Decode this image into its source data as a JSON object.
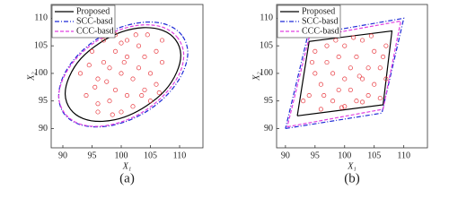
{
  "chart_data": [
    {
      "type": "scatter",
      "curve": "smooth",
      "caption": "(a)",
      "xlabel": "X₁",
      "ylabel": "X₂",
      "xlim": [
        88,
        114
      ],
      "ylim": [
        86.5,
        112.5
      ],
      "xticks": [
        90,
        95,
        100,
        105,
        110
      ],
      "yticks": [
        90,
        95,
        100,
        105,
        110
      ],
      "legend": "upper left",
      "series": [
        {
          "name": "Proposed",
          "color": "#000000",
          "mode": "line",
          "dash": "solid",
          "x": [
            109.3,
            107.1,
            103.8,
            100.0,
            96.3,
            93.1,
            91.1,
            90.4,
            91.3,
            93.5,
            96.8,
            100.6,
            104.3,
            107.5,
            109.5,
            110.2,
            109.3
          ],
          "values": [
            106.1,
            107.8,
            108.3,
            107.5,
            105.5,
            102.7,
            99.4,
            96.2,
            93.5,
            91.8,
            91.3,
            92.1,
            94.1,
            96.9,
            100.2,
            103.4,
            106.1
          ]
        },
        {
          "name": "SCC-basd",
          "color": "#1f2bd6",
          "mode": "line",
          "dash": "dashdot",
          "x": [
            110.4,
            107.9,
            104.3,
            100.0,
            95.8,
            92.3,
            90.0,
            89.3,
            90.2,
            92.7,
            96.4,
            100.6,
            104.8,
            108.3,
            110.6,
            111.4,
            110.4
          ],
          "values": [
            106.9,
            108.8,
            109.3,
            108.4,
            106.2,
            103.0,
            99.3,
            95.7,
            92.7,
            90.8,
            90.3,
            91.2,
            93.4,
            96.6,
            100.3,
            103.9,
            106.9
          ]
        },
        {
          "name": "CCC-basd",
          "color": "#e040e0",
          "mode": "line",
          "dash": "dashed",
          "x": [
            109.7,
            107.3,
            103.8,
            99.7,
            95.7,
            92.3,
            90.1,
            89.3,
            90.3,
            92.7,
            96.2,
            100.3,
            104.3,
            107.7,
            110.0,
            110.7,
            109.7
          ],
          "values": [
            106.4,
            108.3,
            108.8,
            107.9,
            105.8,
            102.7,
            99.2,
            95.7,
            92.8,
            90.9,
            90.4,
            91.3,
            93.4,
            96.5,
            100.0,
            103.5,
            106.4
          ]
        },
        {
          "color": "#e8393f",
          "mode": "markers",
          "x": [
            93,
            94,
            95,
            96,
            96,
            97,
            97,
            98,
            98,
            99,
            99,
            99,
            100,
            100,
            101,
            101,
            101,
            102,
            102,
            103,
            103,
            104,
            104,
            105,
            105,
            106,
            106,
            107,
            107,
            94.5,
            95.5,
            97.5,
            100.5,
            102.5,
            103.5,
            104.5,
            98.5,
            96,
            106.5,
            100
          ],
          "values": [
            100,
            96,
            104,
            94.5,
            99,
            102,
            106,
            95,
            101,
            97,
            104,
            107,
            93,
            100,
            96,
            103,
            106,
            99,
            94,
            101,
            105,
            97,
            103,
            100,
            95,
            104,
            98,
            102,
            106,
            101.5,
            97.5,
            98.5,
            102,
            107,
            96,
            107,
            92.5,
            93,
            96.5,
            105.5
          ]
        }
      ]
    },
    {
      "type": "scatter",
      "curve": "linear",
      "caption": "(b)",
      "xlabel": "X₁",
      "ylabel": "X₂",
      "xlim": [
        88.5,
        114
      ],
      "ylim": [
        86.5,
        112.5
      ],
      "xticks": [
        90,
        95,
        100,
        105,
        110
      ],
      "yticks": [
        90,
        95,
        100,
        105,
        110
      ],
      "legend": "upper left",
      "series": [
        {
          "name": "Proposed",
          "color": "#000000",
          "mode": "line",
          "dash": "solid",
          "x": [
            92,
            106.5,
            108,
            94,
            92
          ],
          "values": [
            92.3,
            94.3,
            107.7,
            105.8,
            92.3
          ]
        },
        {
          "name": "SCC-basd",
          "color": "#1f2bd6",
          "mode": "line",
          "dash": "dashdot",
          "x": [
            90,
            106.3,
            110,
            93.8,
            90
          ],
          "values": [
            90,
            92.8,
            110,
            107,
            90
          ]
        },
        {
          "name": "CCC-basd",
          "color": "#e040e0",
          "mode": "line",
          "dash": "dashed",
          "x": [
            90.3,
            106.5,
            109.5,
            94,
            90.3
          ],
          "values": [
            90.3,
            93.5,
            109.5,
            106.5,
            90.3
          ]
        },
        {
          "color": "#e8393f",
          "mode": "markers",
          "x": [
            94,
            95,
            95,
            96,
            96,
            97,
            97,
            98,
            98,
            99,
            99,
            100,
            100,
            100,
            101,
            101,
            102,
            102,
            103,
            103,
            104,
            104,
            105,
            105,
            106,
            106,
            107,
            107,
            93,
            94.5,
            96.5,
            98.5,
            101.5,
            102.5,
            104.5,
            106.5,
            99.5,
            103
          ],
          "values": [
            96,
            100,
            104,
            93.5,
            98,
            102,
            105,
            95,
            100,
            97,
            103,
            94,
            99,
            105,
            97,
            101,
            95,
            103,
            99,
            106,
            96,
            101,
            104,
            98,
            95.5,
            101,
            105,
            99,
            95,
            102,
            96,
            106,
            106.5,
            99.5,
            106.8,
            103,
            93.8,
            94.8
          ]
        }
      ]
    }
  ]
}
